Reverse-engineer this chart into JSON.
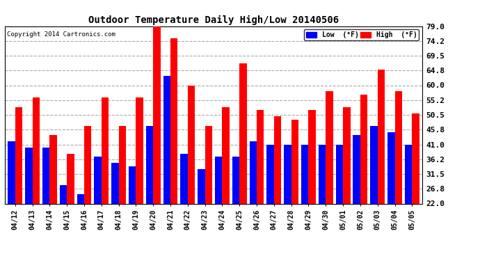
{
  "title": "Outdoor Temperature Daily High/Low 20140506",
  "copyright": "Copyright 2014 Cartronics.com",
  "legend_low": "Low  (°F)",
  "legend_high": "High  (°F)",
  "low_color": "#0000ff",
  "high_color": "#ff0000",
  "background_color": "#ffffff",
  "grid_color": "#aaaaaa",
  "ylim": [
    22.0,
    79.0
  ],
  "yticks": [
    22.0,
    26.8,
    31.5,
    36.2,
    41.0,
    45.8,
    50.5,
    55.2,
    60.0,
    64.8,
    69.5,
    74.2,
    79.0
  ],
  "categories": [
    "04/12",
    "04/13",
    "04/14",
    "04/15",
    "04/16",
    "04/17",
    "04/18",
    "04/19",
    "04/20",
    "04/21",
    "04/22",
    "04/23",
    "04/24",
    "04/25",
    "04/26",
    "04/27",
    "04/28",
    "04/29",
    "04/30",
    "05/01",
    "05/02",
    "05/03",
    "05/04",
    "05/05"
  ],
  "lows": [
    42,
    40,
    40,
    28,
    25,
    37,
    35,
    34,
    47,
    63,
    38,
    33,
    37,
    37,
    42,
    41,
    41,
    41,
    41,
    41,
    44,
    47,
    45,
    41
  ],
  "highs": [
    53,
    56,
    44,
    38,
    47,
    56,
    47,
    56,
    79,
    75,
    60,
    47,
    53,
    67,
    52,
    50,
    49,
    52,
    58,
    53,
    57,
    65,
    58,
    51
  ]
}
